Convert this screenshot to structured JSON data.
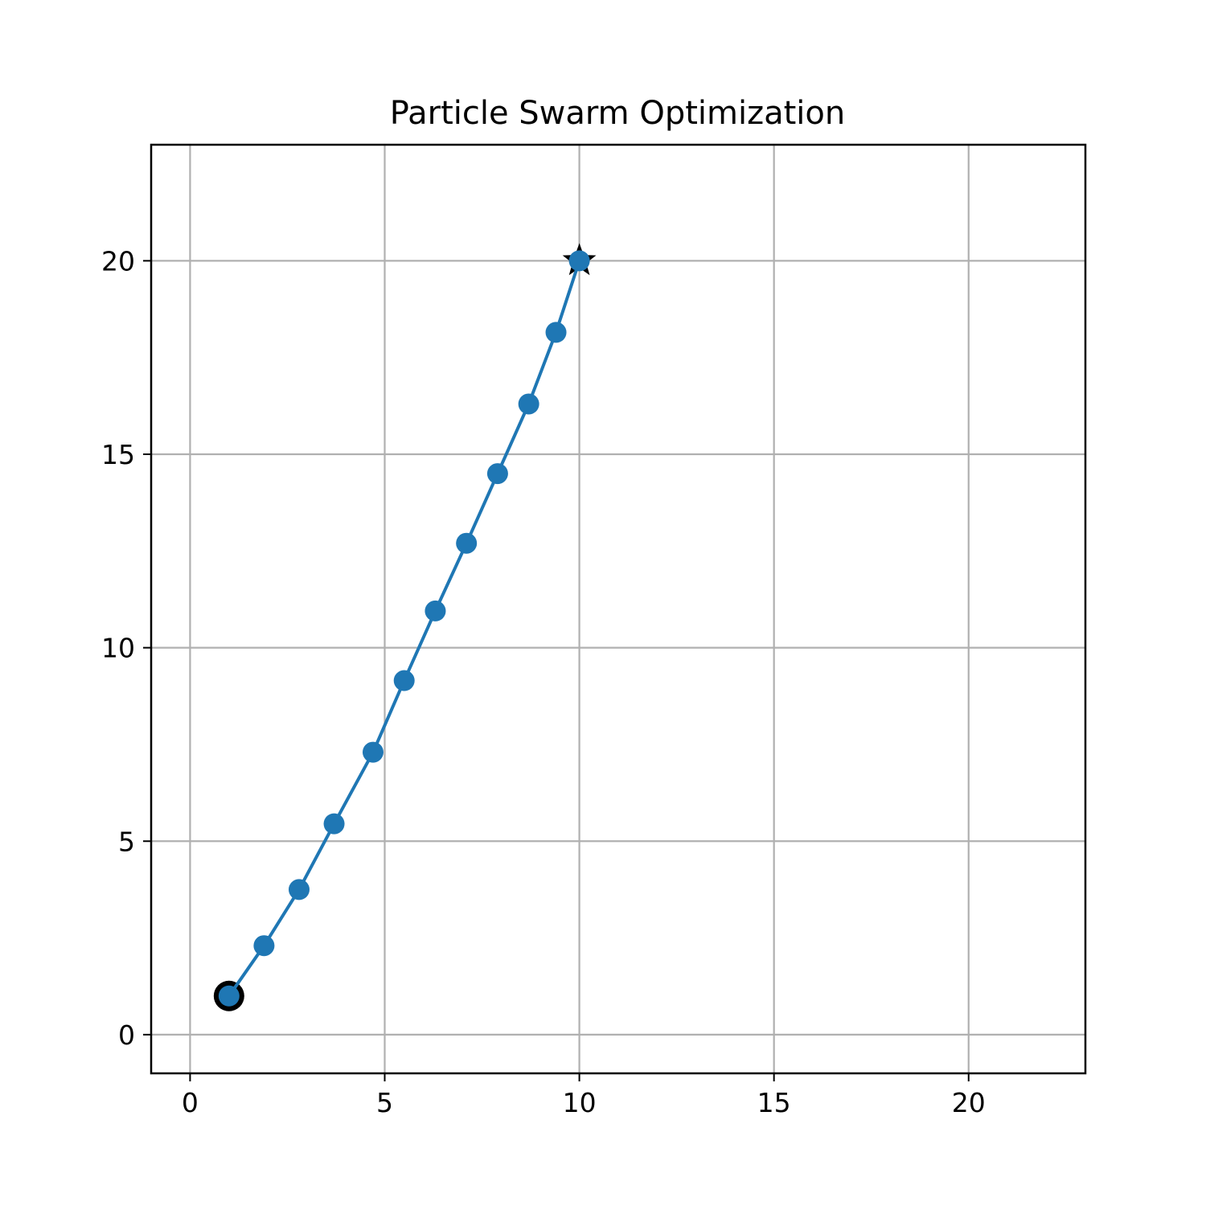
{
  "chart_data": {
    "type": "line",
    "title": "Particle Swarm Optimization",
    "xlabel": "",
    "ylabel": "",
    "xlim": [
      -1,
      23
    ],
    "ylim": [
      -1,
      23
    ],
    "xticks": [
      0,
      5,
      10,
      15,
      20
    ],
    "yticks": [
      0,
      5,
      10,
      15,
      20
    ],
    "grid": true,
    "series": [
      {
        "name": "particle trajectory",
        "color": "#1f77b4",
        "marker": "circle",
        "x": [
          1.0,
          1.9,
          2.8,
          3.7,
          4.7,
          5.5,
          6.3,
          7.1,
          7.9,
          8.7,
          9.4,
          10.0
        ],
        "y": [
          1.0,
          2.3,
          3.75,
          5.45,
          7.3,
          9.15,
          10.95,
          12.7,
          14.5,
          16.3,
          18.15,
          20.0
        ]
      }
    ],
    "start_point": {
      "x": 1.0,
      "y": 1.0,
      "marker": "circle-outlined",
      "edge_color": "#000000"
    },
    "target_point": {
      "x": 10.0,
      "y": 20.0,
      "marker": "star",
      "color": "#000000"
    }
  }
}
